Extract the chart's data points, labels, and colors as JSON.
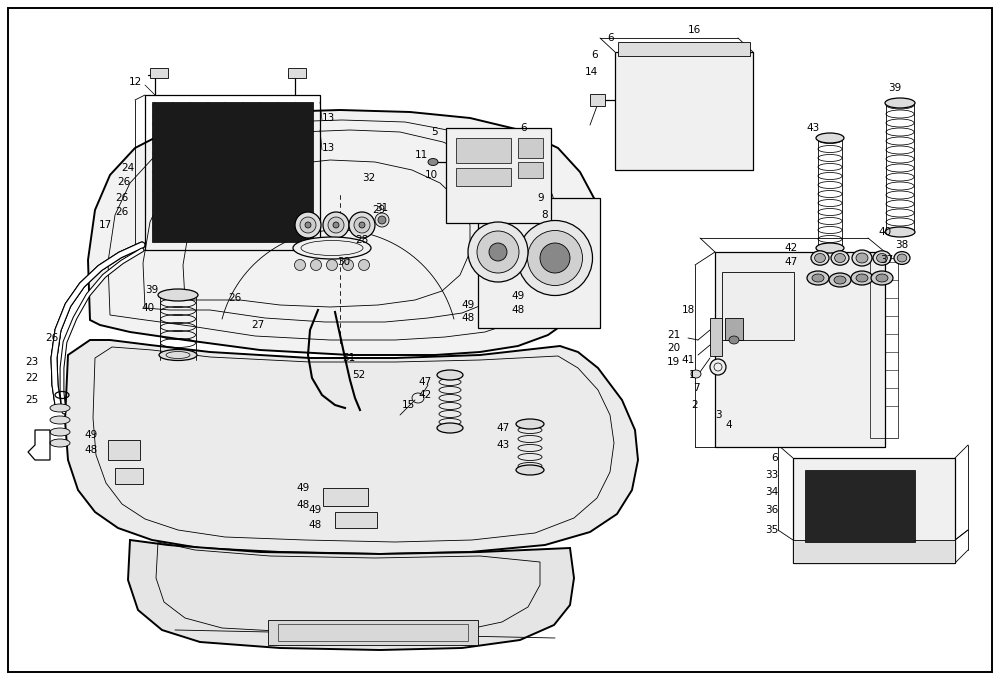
{
  "fig_width": 10.0,
  "fig_height": 6.8,
  "dpi": 100,
  "bg": "#ffffff",
  "border": "#000000",
  "lc": "#000000",
  "gray_dark": "#1a1a1a",
  "gray_med": "#888888",
  "gray_light": "#dddddd",
  "gray_fill": "#f2f2f2",
  "lw_thin": 0.6,
  "lw_med": 0.9,
  "lw_thick": 1.4,
  "fs": 7.5
}
